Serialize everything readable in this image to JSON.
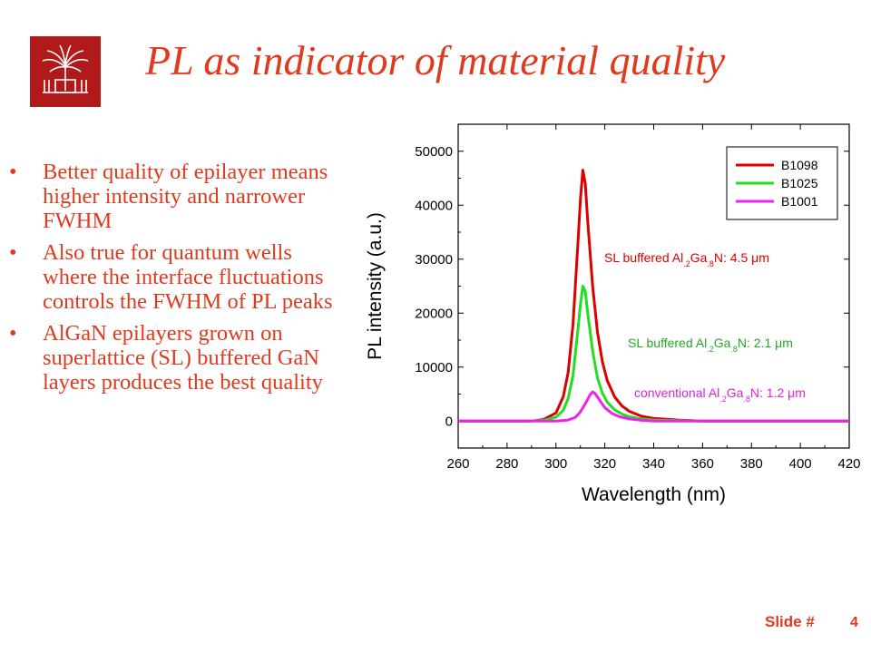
{
  "slide": {
    "title": "PL as indicator of material quality",
    "bullets": [
      "Better quality of epilayer means higher intensity and narrower FWHM",
      "Also true for quantum wells where the interface fluctuations controls the FWHM of PL peaks",
      "AlGaN epilayers grown on superlattice (SL) buffered GaN layers produces the best quality"
    ],
    "footer_label": "Slide #",
    "slide_number": "4",
    "colors": {
      "accent": "#e03a1e",
      "logo": "#b01a1a"
    }
  },
  "chart_data": {
    "type": "line",
    "title": "",
    "xlabel": "Wavelength (nm)",
    "ylabel": "PL intensity (a.u.)",
    "xlim": [
      260,
      420
    ],
    "ylim": [
      -5000,
      55000
    ],
    "xticks": [
      260,
      280,
      300,
      320,
      340,
      360,
      380,
      400,
      420
    ],
    "yticks": [
      0,
      10000,
      20000,
      30000,
      40000,
      50000
    ],
    "grid": false,
    "legend_position": "top-right",
    "series": [
      {
        "name": "B1098",
        "color": "#dd0000",
        "x": [
          260,
          290,
          295,
          300,
          303,
          305,
          307,
          309,
          310,
          311,
          312,
          313,
          315,
          317,
          319,
          321,
          324,
          327,
          330,
          335,
          340,
          350,
          360,
          420
        ],
        "y": [
          0,
          0,
          300,
          1500,
          4500,
          9000,
          18000,
          33000,
          41000,
          46500,
          44000,
          37000,
          25000,
          16500,
          11000,
          7500,
          4500,
          2800,
          1800,
          900,
          500,
          200,
          0,
          0
        ]
      },
      {
        "name": "B1025",
        "color": "#22dd22",
        "x": [
          260,
          290,
          295,
          300,
          303,
          305,
          307,
          309,
          310,
          311,
          312,
          313,
          315,
          317,
          319,
          321,
          324,
          327,
          330,
          335,
          340,
          350,
          360,
          420
        ],
        "y": [
          0,
          0,
          150,
          700,
          2000,
          4200,
          8500,
          17000,
          21500,
          25000,
          24000,
          20000,
          13000,
          8000,
          5200,
          3500,
          2100,
          1300,
          800,
          400,
          200,
          100,
          0,
          0
        ]
      },
      {
        "name": "B1001",
        "color": "#ee22ee",
        "x": [
          260,
          300,
          305,
          308,
          310,
          312,
          314,
          315,
          316,
          318,
          320,
          323,
          326,
          330,
          335,
          340,
          420
        ],
        "y": [
          0,
          0,
          200,
          700,
          1700,
          3200,
          4900,
          5400,
          5100,
          3800,
          2500,
          1400,
          800,
          400,
          150,
          0,
          0
        ]
      }
    ],
    "annotations": [
      {
        "prefix": "SL buffered Al",
        "sub1": ".2",
        "mid": "Ga",
        "sub2": ".8",
        "suffix": "N: 4.5 ",
        "unit": "μm",
        "color": "#dd0000"
      },
      {
        "prefix": "SL buffered Al",
        "sub1": ".2",
        "mid": "Ga",
        "sub2": ".8",
        "suffix": "N: 2.1 ",
        "unit": "μm",
        "color": "#22aa22"
      },
      {
        "prefix": "conventional Al",
        "sub1": ".2",
        "mid": "Ga",
        "sub2": ".8",
        "suffix": "N: 1.2 ",
        "unit": "μm",
        "color": "#dd22dd"
      }
    ]
  }
}
